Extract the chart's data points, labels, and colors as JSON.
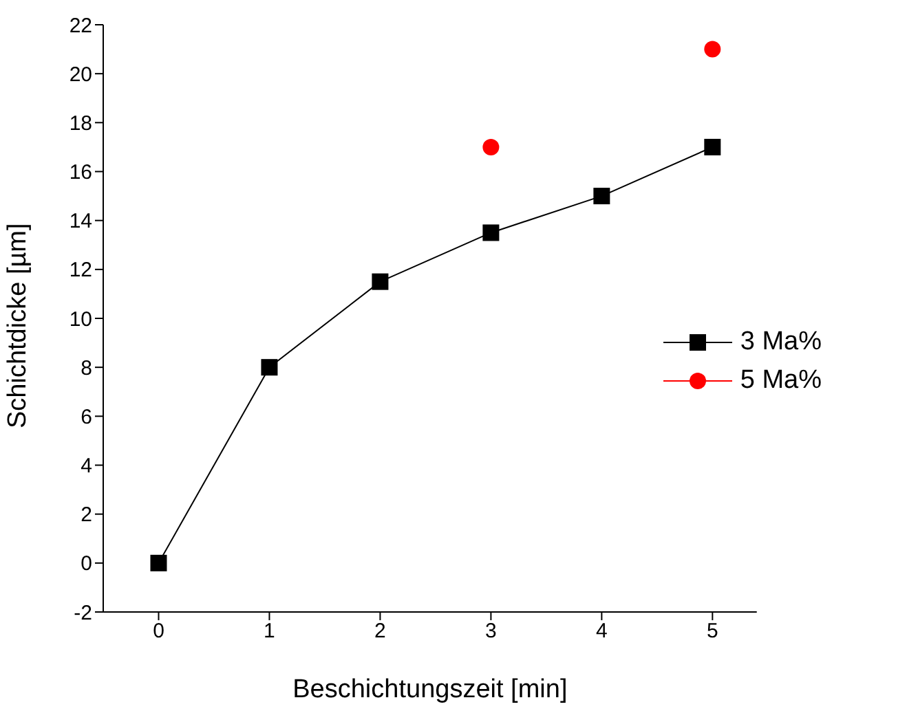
{
  "chart_data": {
    "type": "line",
    "xlabel": "Beschichtungszeit [min]",
    "ylabel": "Schichtdicke [µm]",
    "x": [
      0,
      1,
      2,
      3,
      4,
      5
    ],
    "series": [
      {
        "name": "3 Ma%",
        "color": "#000000",
        "marker": "square",
        "values": [
          0,
          8,
          11.5,
          13.5,
          15,
          17
        ]
      },
      {
        "name": "5 Ma%",
        "type": "scatter",
        "color": "#ff0000",
        "marker": "circle",
        "values": [
          null,
          null,
          null,
          17,
          null,
          21
        ]
      }
    ],
    "xlim": [
      -0.5,
      5.4
    ],
    "xticks": [
      0,
      1,
      2,
      3,
      4,
      5
    ],
    "ylim": [
      -2,
      22
    ],
    "yticks": [
      -2,
      0,
      2,
      4,
      6,
      8,
      10,
      12,
      14,
      16,
      18,
      20,
      22
    ],
    "grid": false,
    "legend": "right"
  }
}
